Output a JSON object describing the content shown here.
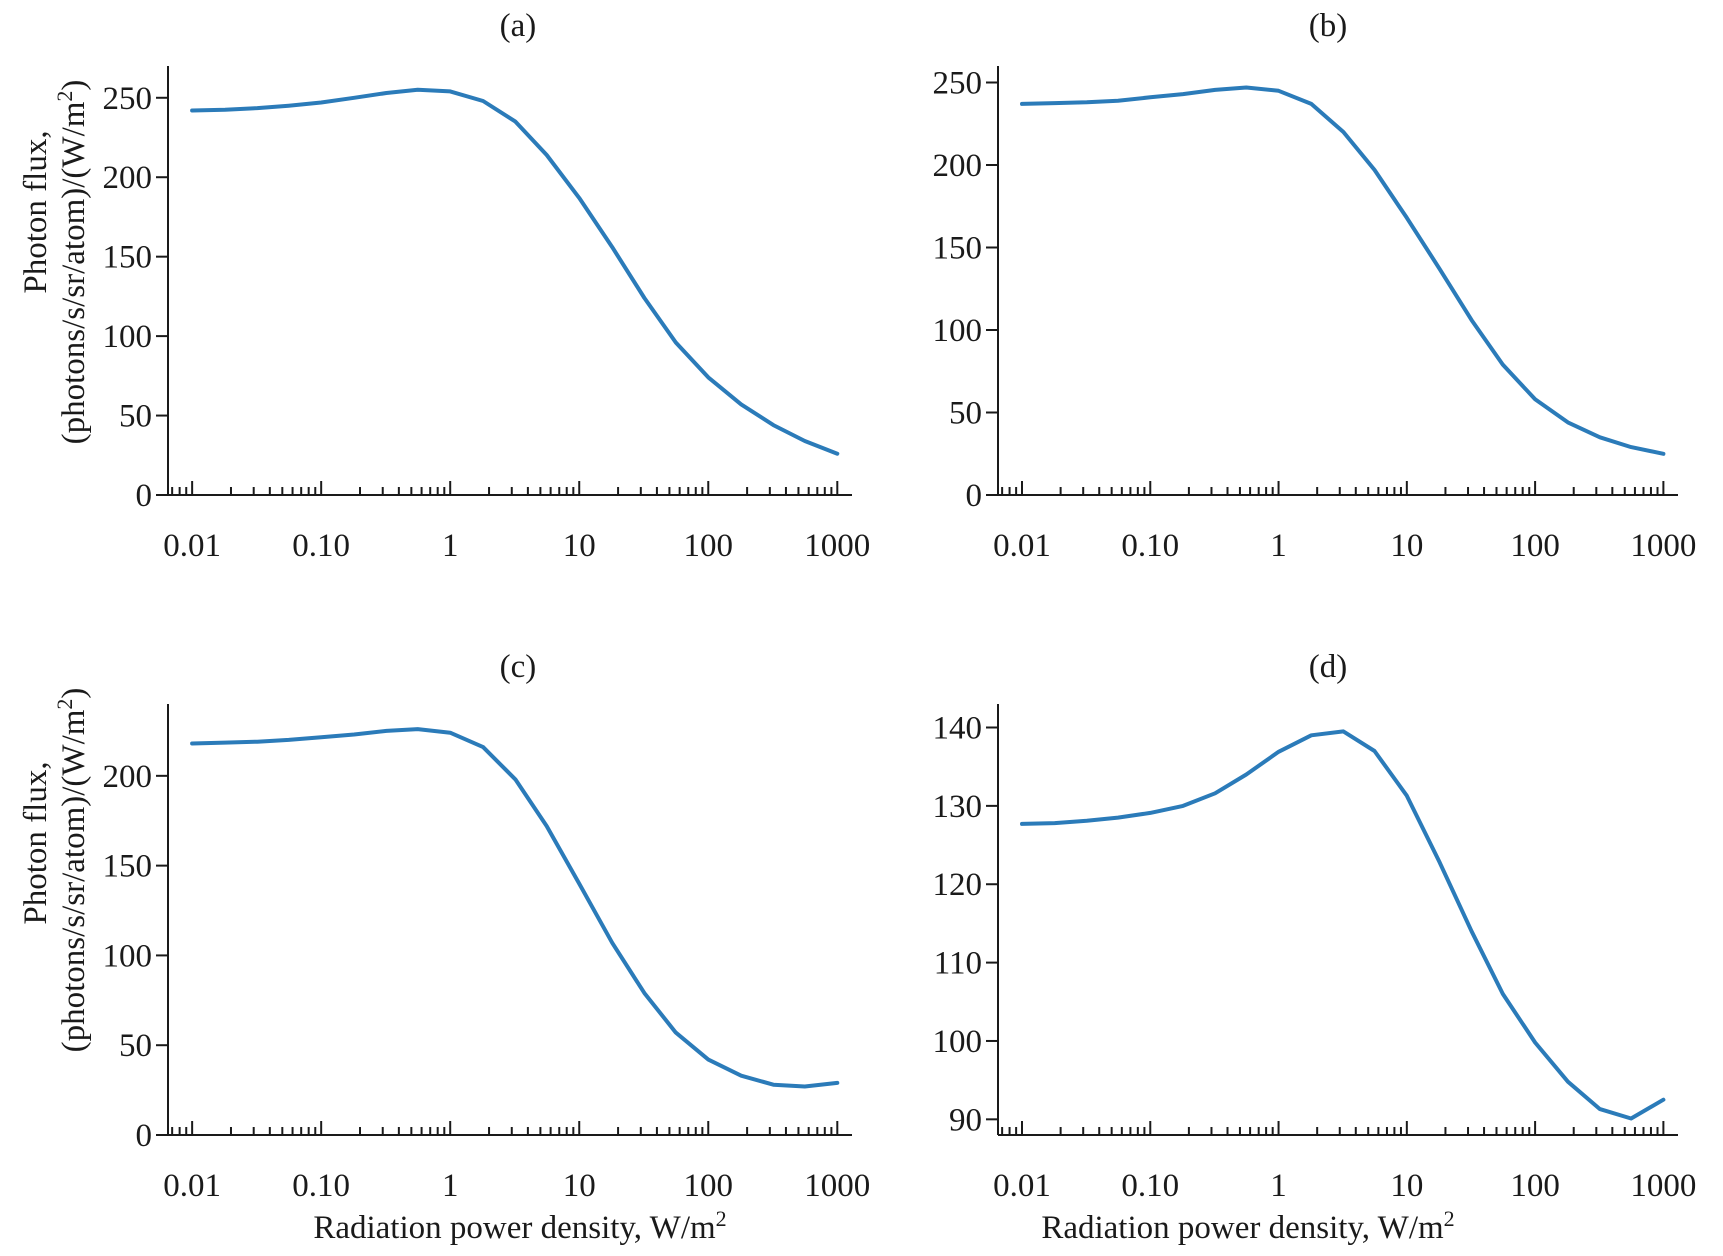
{
  "figure": {
    "ylabel_line1": "Photon flux,",
    "ylabel_line2": "(photons/s/sr/atom)/(W/m",
    "ylabel_sup": "2",
    "ylabel_end": ")",
    "xlabel_main": "Radiation power density, W/m",
    "xlabel_sup": "2",
    "line_color": "#2b7bb9"
  },
  "chart_data": [
    {
      "type": "line",
      "title": "(a)",
      "xscale": "log",
      "xlim": [
        0.0065,
        1300
      ],
      "ylim": [
        0,
        270
      ],
      "xticks": [
        0.01,
        0.1,
        1,
        10,
        100,
        1000
      ],
      "xtick_labels": [
        "0.01",
        "0.10",
        "1",
        "10",
        "100",
        "1000"
      ],
      "yticks": [
        0,
        50,
        100,
        150,
        200,
        250
      ],
      "ytick_labels": [
        "0",
        "50",
        "100",
        "150",
        "200",
        "250"
      ],
      "series": [
        {
          "name": "photon flux",
          "x": [
            0.01,
            0.018,
            0.032,
            0.056,
            0.1,
            0.18,
            0.32,
            0.56,
            1,
            1.8,
            3.2,
            5.6,
            10,
            18,
            32,
            56,
            100,
            180,
            320,
            560,
            1000
          ],
          "y": [
            242,
            242.5,
            243.5,
            245,
            247,
            250,
            253,
            255,
            254,
            248,
            235,
            214,
            187,
            156,
            124,
            96,
            74,
            57,
            44,
            34,
            26
          ]
        }
      ]
    },
    {
      "type": "line",
      "title": "(b)",
      "xscale": "log",
      "xlim": [
        0.0065,
        1300
      ],
      "ylim": [
        0,
        260
      ],
      "xticks": [
        0.01,
        0.1,
        1,
        10,
        100,
        1000
      ],
      "xtick_labels": [
        "0.01",
        "0.10",
        "1",
        "10",
        "100",
        "1000"
      ],
      "yticks": [
        0,
        50,
        100,
        150,
        200,
        250
      ],
      "ytick_labels": [
        "0",
        "50",
        "100",
        "150",
        "200",
        "250"
      ],
      "series": [
        {
          "name": "photon flux",
          "x": [
            0.01,
            0.018,
            0.032,
            0.056,
            0.1,
            0.18,
            0.32,
            0.56,
            1,
            1.8,
            3.2,
            5.6,
            10,
            18,
            32,
            56,
            100,
            180,
            320,
            560,
            1000
          ],
          "y": [
            237,
            237.5,
            238,
            239,
            241,
            243,
            245.5,
            247,
            245,
            237,
            220,
            197,
            168,
            137,
            106,
            79,
            58,
            44,
            35,
            29,
            25
          ]
        }
      ]
    },
    {
      "type": "line",
      "title": "(c)",
      "xscale": "log",
      "xlim": [
        0.0065,
        1300
      ],
      "ylim": [
        0,
        240
      ],
      "xticks": [
        0.01,
        0.1,
        1,
        10,
        100,
        1000
      ],
      "xtick_labels": [
        "0.01",
        "0.10",
        "1",
        "10",
        "100",
        "1000"
      ],
      "yticks": [
        0,
        50,
        100,
        150,
        200
      ],
      "ytick_labels": [
        "0",
        "50",
        "100",
        "150",
        "200"
      ],
      "series": [
        {
          "name": "photon flux",
          "x": [
            0.01,
            0.018,
            0.032,
            0.056,
            0.1,
            0.18,
            0.32,
            0.56,
            1,
            1.8,
            3.2,
            5.6,
            10,
            18,
            32,
            56,
            100,
            180,
            320,
            560,
            1000
          ],
          "y": [
            218,
            218.5,
            219,
            220,
            221.5,
            223,
            225,
            226,
            224,
            216,
            198,
            172,
            140,
            107,
            79,
            57,
            42,
            33,
            28,
            27,
            29
          ]
        }
      ]
    },
    {
      "type": "line",
      "title": "(d)",
      "xscale": "log",
      "xlim": [
        0.0065,
        1300
      ],
      "ylim": [
        88,
        143
      ],
      "xticks": [
        0.01,
        0.1,
        1,
        10,
        100,
        1000
      ],
      "xtick_labels": [
        "0.01",
        "0.10",
        "1",
        "10",
        "100",
        "1000"
      ],
      "yticks": [
        90,
        100,
        110,
        120,
        130,
        140
      ],
      "ytick_labels": [
        "90",
        "100",
        "110",
        "120",
        "130",
        "140"
      ],
      "series": [
        {
          "name": "photon flux",
          "x": [
            0.01,
            0.018,
            0.032,
            0.056,
            0.1,
            0.18,
            0.32,
            0.56,
            1,
            1.8,
            3.2,
            5.6,
            10,
            18,
            32,
            56,
            100,
            180,
            320,
            560,
            1000
          ],
          "y": [
            127.7,
            127.8,
            128.1,
            128.5,
            129.1,
            130,
            131.6,
            134,
            136.9,
            139,
            139.5,
            137,
            131.3,
            122.8,
            114,
            106,
            99.8,
            94.8,
            91.3,
            90.1,
            92.5
          ]
        }
      ]
    }
  ]
}
